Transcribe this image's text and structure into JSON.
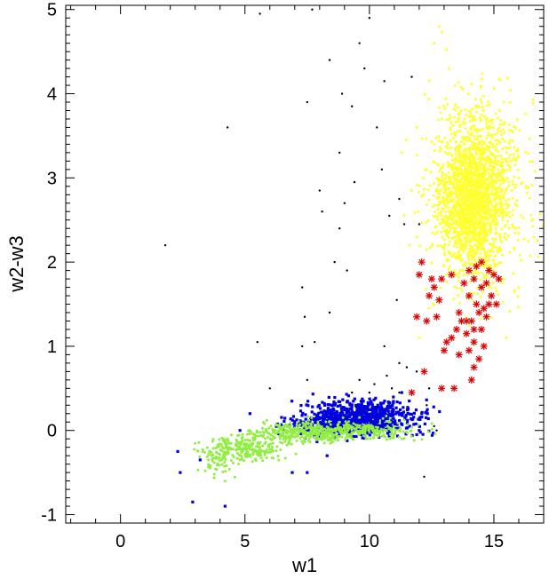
{
  "chart_data": {
    "type": "scatter",
    "title": "",
    "xlabel": "w1",
    "ylabel": "w2-w3",
    "xlim": [
      -2.2,
      17
    ],
    "ylim": [
      -1.1,
      5.05
    ],
    "x_ticks": [
      0,
      5,
      10,
      15
    ],
    "y_ticks": [
      -1,
      0,
      1,
      2,
      3,
      4,
      5
    ],
    "x_tick_labels": [
      "0",
      "5",
      "10",
      "15"
    ],
    "y_tick_labels": [
      "-1",
      "0",
      "1",
      "2",
      "3",
      "4",
      "5"
    ],
    "grid": false,
    "legend": "none",
    "series": [
      {
        "color": "#ffff33",
        "marker": "dot",
        "clusters": [
          {
            "cx": 14.3,
            "cy": 2.8,
            "sx": 0.9,
            "sy": 0.55,
            "n": 1400
          },
          {
            "cx": 14.0,
            "cy": 2.75,
            "sx": 0.55,
            "sy": 0.35,
            "n": 900
          }
        ],
        "points": [
          [
            12.8,
            4.8
          ],
          [
            12.6,
            4.6
          ],
          [
            13.2,
            4.3
          ],
          [
            11.9,
            3.6
          ],
          [
            12.3,
            3.1
          ],
          [
            12.6,
            3.4
          ],
          [
            11.7,
            2.85
          ],
          [
            11.4,
            2.55
          ],
          [
            11.6,
            2.2
          ],
          [
            11.9,
            2.3
          ],
          [
            12.0,
            1.1
          ],
          [
            12.4,
            1.45
          ],
          [
            15.5,
            1.1
          ],
          [
            15.4,
            3.9
          ],
          [
            16.0,
            3.0
          ],
          [
            15.9,
            2.4
          ]
        ]
      },
      {
        "color": "#0000dd",
        "marker": "square",
        "clusters": [
          {
            "cx": 9.8,
            "cy": 0.15,
            "sx": 1.0,
            "sy": 0.1,
            "n": 700
          },
          {
            "cx": 8.0,
            "cy": 0.07,
            "sx": 0.8,
            "sy": 0.07,
            "n": 120
          }
        ],
        "points": [
          [
            2.3,
            -0.25
          ],
          [
            2.4,
            -0.5
          ],
          [
            2.9,
            -0.85
          ],
          [
            4.2,
            -0.9
          ],
          [
            3.2,
            -0.35
          ],
          [
            6.9,
            -0.5
          ],
          [
            7.5,
            -0.5
          ],
          [
            8.3,
            -0.3
          ],
          [
            11.9,
            -0.05
          ],
          [
            12.0,
            0.0
          ],
          [
            11.6,
            0.35
          ],
          [
            11.3,
            0.45
          ],
          [
            12.1,
            0.2
          ],
          [
            5.2,
            0.2
          ],
          [
            4.8,
            0.0
          ]
        ]
      },
      {
        "color": "#90ee40",
        "marker": "dot",
        "clusters": [
          {
            "cx": 5.0,
            "cy": -0.22,
            "sx": 0.7,
            "sy": 0.07,
            "n": 220
          },
          {
            "cx": 7.0,
            "cy": -0.03,
            "sx": 0.9,
            "sy": 0.06,
            "n": 260
          },
          {
            "cx": 9.5,
            "cy": 0.0,
            "sx": 1.2,
            "sy": 0.06,
            "n": 280
          },
          {
            "cx": 3.8,
            "cy": -0.35,
            "sx": 0.4,
            "sy": 0.08,
            "n": 60
          }
        ],
        "points": [
          [
            3.3,
            -0.25
          ],
          [
            4.2,
            -0.6
          ],
          [
            11.0,
            -0.05
          ],
          [
            11.3,
            -0.1
          ]
        ]
      },
      {
        "color": "#000000",
        "marker": "dot",
        "points": [
          [
            5.6,
            4.95
          ],
          [
            7.7,
            5.0
          ],
          [
            10.0,
            4.9
          ],
          [
            9.6,
            4.6
          ],
          [
            8.4,
            4.4
          ],
          [
            9.8,
            4.3
          ],
          [
            10.6,
            4.15
          ],
          [
            11.7,
            4.2
          ],
          [
            8.9,
            4.0
          ],
          [
            7.5,
            3.9
          ],
          [
            9.3,
            3.85
          ],
          [
            10.3,
            3.6
          ],
          [
            4.3,
            3.6
          ],
          [
            8.8,
            3.3
          ],
          [
            10.5,
            3.1
          ],
          [
            9.4,
            2.95
          ],
          [
            8.0,
            2.85
          ],
          [
            11.2,
            2.75
          ],
          [
            9.0,
            2.7
          ],
          [
            8.1,
            2.6
          ],
          [
            10.8,
            2.55
          ],
          [
            12.0,
            2.45
          ],
          [
            8.8,
            2.4
          ],
          [
            11.4,
            2.45
          ],
          [
            8.6,
            2.0
          ],
          [
            1.8,
            2.2
          ],
          [
            9.1,
            1.9
          ],
          [
            7.3,
            1.7
          ],
          [
            11.1,
            1.55
          ],
          [
            8.4,
            1.4
          ],
          [
            7.4,
            1.35
          ],
          [
            7.8,
            1.05
          ],
          [
            5.5,
            1.05
          ],
          [
            7.3,
            1.0
          ],
          [
            10.6,
            1.0
          ],
          [
            11.2,
            0.8
          ],
          [
            11.5,
            0.75
          ],
          [
            11.9,
            0.7
          ],
          [
            10.7,
            0.65
          ],
          [
            7.5,
            0.6
          ],
          [
            9.6,
            0.6
          ],
          [
            10.2,
            0.55
          ],
          [
            10.9,
            0.5
          ],
          [
            11.2,
            0.45
          ],
          [
            6.0,
            0.5
          ],
          [
            12.4,
            0.5
          ],
          [
            12.3,
            0.3
          ],
          [
            9.3,
            0.45
          ],
          [
            10.0,
            0.45
          ],
          [
            12.6,
            0.05
          ],
          [
            12.7,
            0.0
          ],
          [
            12.2,
            -0.55
          ]
        ]
      },
      {
        "color": "#dd0000",
        "marker": "asterisk",
        "points": [
          [
            14.2,
            1.8
          ],
          [
            14.5,
            1.7
          ],
          [
            14.8,
            1.9
          ],
          [
            14.0,
            1.6
          ],
          [
            14.3,
            1.5
          ],
          [
            14.6,
            1.45
          ],
          [
            14.1,
            1.3
          ],
          [
            14.5,
            1.2
          ],
          [
            14.2,
            1.05
          ],
          [
            14.6,
            1.0
          ],
          [
            14.4,
            0.85
          ],
          [
            14.2,
            0.75
          ],
          [
            14.0,
            0.95
          ],
          [
            14.7,
            1.35
          ],
          [
            14.9,
            1.6
          ],
          [
            13.9,
            1.15
          ],
          [
            15.0,
            1.85
          ],
          [
            14.3,
            1.95
          ],
          [
            14.0,
            1.9
          ],
          [
            13.8,
            1.75
          ],
          [
            14.4,
            1.4
          ],
          [
            14.1,
            0.6
          ],
          [
            13.6,
            1.4
          ],
          [
            14.8,
            1.5
          ],
          [
            15.2,
            1.8
          ],
          [
            14.5,
            2.0
          ],
          [
            14.7,
            1.75
          ],
          [
            13.9,
            1.3
          ],
          [
            14.2,
            1.2
          ],
          [
            13.6,
            0.9
          ],
          [
            13.3,
            1.1
          ],
          [
            13.1,
            1.05
          ],
          [
            13.4,
            0.5
          ],
          [
            12.9,
            0.5
          ],
          [
            13.0,
            0.95
          ],
          [
            12.7,
            1.35
          ],
          [
            12.9,
            1.8
          ],
          [
            13.3,
            1.85
          ],
          [
            12.5,
            1.8
          ],
          [
            12.6,
            1.7
          ],
          [
            12.4,
            1.6
          ],
          [
            12.8,
            1.55
          ],
          [
            12.3,
            1.3
          ],
          [
            12.0,
            1.85
          ],
          [
            12.1,
            2.0
          ],
          [
            11.9,
            1.35
          ],
          [
            11.7,
            0.45
          ],
          [
            12.2,
            0.7
          ],
          [
            13.5,
            1.2
          ],
          [
            13.7,
            1.3
          ],
          [
            15.1,
            1.5
          ]
        ]
      }
    ]
  }
}
